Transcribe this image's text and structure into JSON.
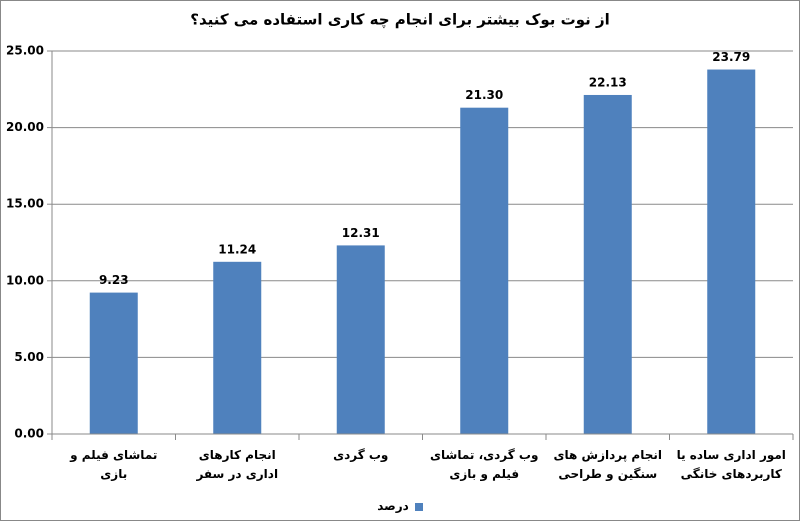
{
  "chart_data": {
    "type": "bar",
    "title": "از نوت بوک بیشتر برای انجام چه کاری استفاده می کنید؟",
    "categories": [
      "تماشای فیلم و بازی",
      "انجام کارهای اداری در سفر",
      "وب گردی",
      "وب گردی، تماشای فیلم و بازی",
      "انجام پردازش های سنگین و طراحی",
      "امور اداری ساده یا کاربردهای خانگی"
    ],
    "series": [
      {
        "name": "درصد",
        "color": "#4f81bd",
        "values": [
          9.23,
          11.24,
          12.31,
          21.3,
          22.13,
          23.79
        ],
        "value_labels": [
          "9.23",
          "11.24",
          "12.31",
          "21.30",
          "22.13",
          "23.79"
        ]
      }
    ],
    "ylim": [
      0,
      25
    ],
    "yticks": [
      {
        "value": 0,
        "label": "0.00"
      },
      {
        "value": 5,
        "label": "5.00"
      },
      {
        "value": 10,
        "label": "10.00"
      },
      {
        "value": 15,
        "label": "15.00"
      },
      {
        "value": 20,
        "label": "20.00"
      },
      {
        "value": 25,
        "label": "25.00"
      }
    ],
    "grid": true,
    "legend": "bottom"
  }
}
